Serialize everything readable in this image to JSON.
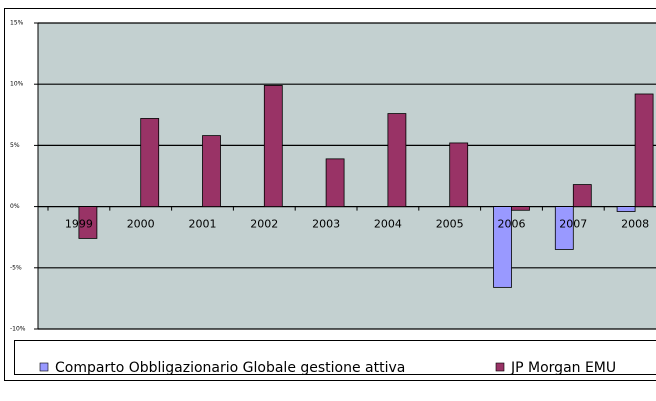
{
  "chart_data": {
    "type": "bar",
    "categories": [
      "1999",
      "2000",
      "2001",
      "2002",
      "2003",
      "2004",
      "2005",
      "2006",
      "2007",
      "2008"
    ],
    "series": [
      {
        "name": "Comparto Obbligazionario Globale gestione attiva",
        "color": "#9999ff",
        "values": [
          null,
          null,
          null,
          null,
          null,
          null,
          null,
          -6.6,
          -3.5,
          -0.4
        ]
      },
      {
        "name": "JP Morgan EMU",
        "color": "#993366",
        "values": [
          -2.6,
          7.2,
          5.8,
          9.9,
          3.9,
          7.6,
          5.2,
          -0.3,
          1.8,
          9.2
        ]
      }
    ],
    "ylim": [
      -10,
      15
    ],
    "yticks": [
      {
        "value": -10,
        "label": "-10%"
      },
      {
        "value": -5,
        "label": "-5%"
      },
      {
        "value": 0,
        "label": "0%"
      },
      {
        "value": 5,
        "label": "5%"
      },
      {
        "value": 10,
        "label": "10%"
      },
      {
        "value": 15,
        "label": "15%"
      }
    ],
    "grid": true,
    "background": "#c3d0d0"
  }
}
